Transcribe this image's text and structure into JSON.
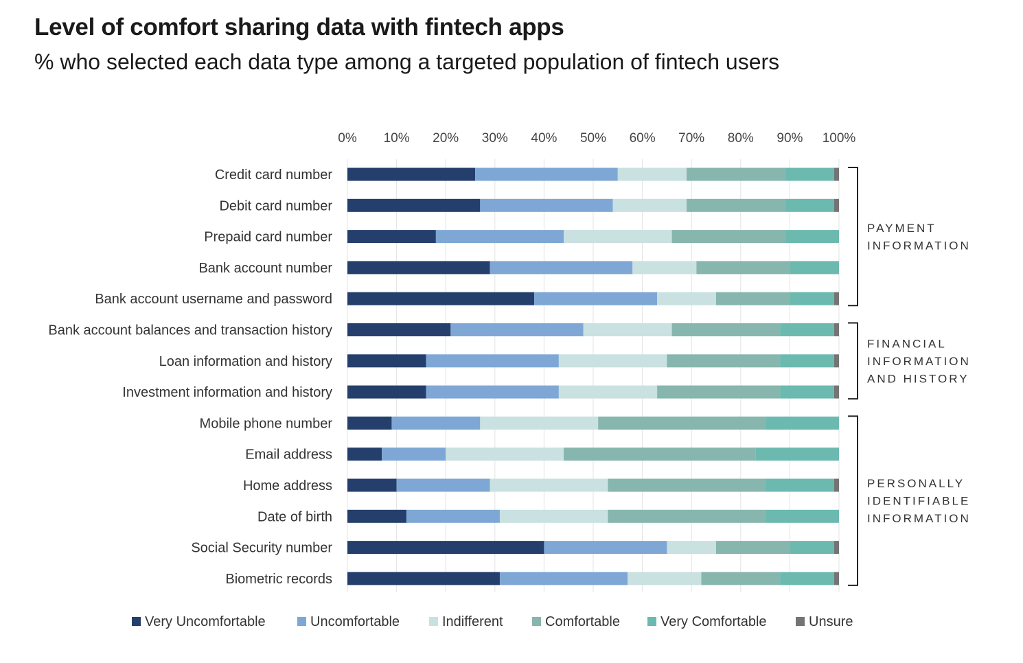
{
  "title": "Level of comfort sharing data with fintech apps",
  "subtitle": "% who selected each data type among a targeted population of fintech users",
  "colors": {
    "Very Uncomfortable": "#243f6b",
    "Uncomfortable": "#7ea7d6",
    "Indifferent": "#c9e1e0",
    "Comfortable": "#86b6ae",
    "Very Comfortable": "#6cb9b0",
    "Unsure": "#747474"
  },
  "groups": [
    {
      "lines": [
        "PAYMENT",
        "INFORMATION"
      ],
      "from": 0,
      "to": 4
    },
    {
      "lines": [
        "FINANCIAL",
        "INFORMATION",
        "AND HISTORY"
      ],
      "from": 5,
      "to": 7
    },
    {
      "lines": [
        "PERSONALLY",
        "IDENTIFIABLE",
        "INFORMATION"
      ],
      "from": 8,
      "to": 13
    }
  ],
  "chart_data": {
    "type": "bar",
    "orientation": "horizontal",
    "stacked": true,
    "xlim": [
      0,
      100
    ],
    "x_ticks": [
      "0%",
      "10%",
      "20%",
      "30%",
      "40%",
      "50%",
      "60%",
      "70%",
      "80%",
      "90%",
      "100%"
    ],
    "legend_position": "bottom",
    "categories": [
      "Credit card number",
      "Debit card number",
      "Prepaid card number",
      "Bank account number",
      "Bank account username and password",
      "Bank account balances and transaction history",
      "Loan information and history",
      "Investment information and history",
      "Mobile phone number",
      "Email address",
      "Home address",
      "Date of birth",
      "Social Security number",
      "Biometric records"
    ],
    "series": [
      {
        "name": "Very Uncomfortable",
        "values": [
          26,
          27,
          18,
          29,
          38,
          21,
          16,
          16,
          9,
          7,
          10,
          12,
          40,
          31
        ]
      },
      {
        "name": "Uncomfortable",
        "values": [
          29,
          27,
          26,
          29,
          25,
          27,
          27,
          27,
          18,
          13,
          19,
          19,
          25,
          26
        ]
      },
      {
        "name": "Indifferent",
        "values": [
          14,
          15,
          22,
          13,
          12,
          18,
          22,
          20,
          24,
          24,
          24,
          22,
          10,
          15
        ]
      },
      {
        "name": "Comfortable",
        "values": [
          20,
          20,
          23,
          19,
          15,
          22,
          23,
          25,
          34,
          39,
          32,
          32,
          15,
          16
        ]
      },
      {
        "name": "Very Comfortable",
        "values": [
          10,
          10,
          11,
          10,
          9,
          11,
          11,
          11,
          15,
          17,
          14,
          15,
          9,
          11
        ]
      },
      {
        "name": "Unsure",
        "values": [
          1,
          1,
          0,
          0,
          1,
          1,
          1,
          1,
          0,
          0,
          1,
          0,
          1,
          1
        ]
      }
    ]
  }
}
